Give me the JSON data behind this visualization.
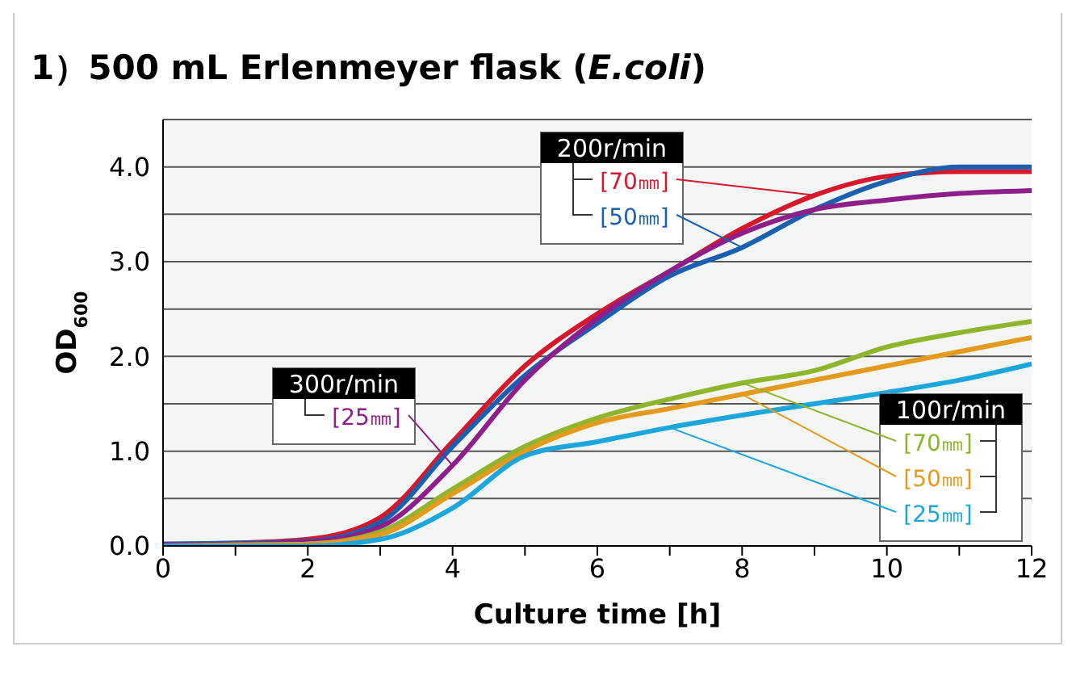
{
  "chart_data": {
    "type": "line",
    "title": "1）500 mL Erlenmeyer flask (E.coli)",
    "xlabel": "Culture time [h]",
    "ylabel": "OD$_{600}$",
    "annotations": [
      {
        "text": "200r/min",
        "x": 9,
        "y": 3.7
      },
      {
        "text": "300r/min",
        "x": 4,
        "y": 0.85
      },
      {
        "text": "100r/min",
        "x": 8,
        "y": 1.72
      }
    ],
    "x": [
      0,
      1,
      2,
      3,
      4,
      5,
      6,
      7,
      8,
      9,
      10,
      11,
      12
    ],
    "series": [
      {
        "name": "[70㎜]",
        "color": "#d7182a",
        "values": [
          0.02,
          0.03,
          0.07,
          0.3,
          1.1,
          1.9,
          2.45,
          2.9,
          3.35,
          3.7,
          3.9,
          3.95,
          3.95
        ]
      },
      {
        "name": "[50㎜]",
        "color": "#1b5fb0",
        "values": [
          0.02,
          0.03,
          0.05,
          0.25,
          1.05,
          1.8,
          2.35,
          2.85,
          3.15,
          3.55,
          3.85,
          4.0,
          4.0
        ]
      },
      {
        "name": "[25㎜]",
        "color": "#8e1e8a",
        "values": [
          0.01,
          0.02,
          0.04,
          0.2,
          0.85,
          1.75,
          2.4,
          2.9,
          3.3,
          3.55,
          3.65,
          3.72,
          3.75
        ]
      },
      {
        "name": "[70㎜]",
        "color": "#8fb52d",
        "values": [
          0,
          0.01,
          0.02,
          0.15,
          0.6,
          1.05,
          1.35,
          1.55,
          1.72,
          1.85,
          2.1,
          2.25,
          2.37
        ]
      },
      {
        "name": "[50㎜]",
        "color": "#e49a1c",
        "values": [
          0,
          0.01,
          0.02,
          0.12,
          0.55,
          1.0,
          1.3,
          1.45,
          1.6,
          1.75,
          1.9,
          2.05,
          2.2
        ]
      },
      {
        "name": "[25㎜]",
        "color": "#1ca7dc",
        "values": [
          0,
          0,
          0,
          0.07,
          0.4,
          0.95,
          1.1,
          1.25,
          1.38,
          1.5,
          1.62,
          1.75,
          1.92
        ]
      }
    ],
    "xlim": [
      0,
      12
    ],
    "xticks": [
      0,
      {
        "value": 1,
        "label": null
      },
      2,
      {
        "value": 3,
        "label": null
      },
      4,
      {
        "value": 5,
        "label": null
      },
      6,
      {
        "value": 7,
        "label": null
      },
      8,
      {
        "value": 9,
        "label": null
      },
      10,
      {
        "value": 11,
        "label": null
      },
      12
    ],
    "ylim": [
      0,
      4.5
    ],
    "yticks": [
      {
        "value": 0,
        "label": "0.0"
      },
      {
        "value": 0.5,
        "label": null
      },
      {
        "value": 1,
        "label": "1.0"
      },
      {
        "value": 1.5,
        "label": null
      },
      {
        "value": 2,
        "label": "2.0"
      },
      {
        "value": 2.5,
        "label": null
      },
      {
        "value": 3,
        "label": "3.0"
      },
      {
        "value": 3.5,
        "label": null
      },
      {
        "value": 4,
        "label": "4.0"
      },
      {
        "value": 4.5,
        "label": null
      }
    ],
    "grid": "y",
    "legend": false,
    "marker": "none",
    "line_style": "solid"
  }
}
